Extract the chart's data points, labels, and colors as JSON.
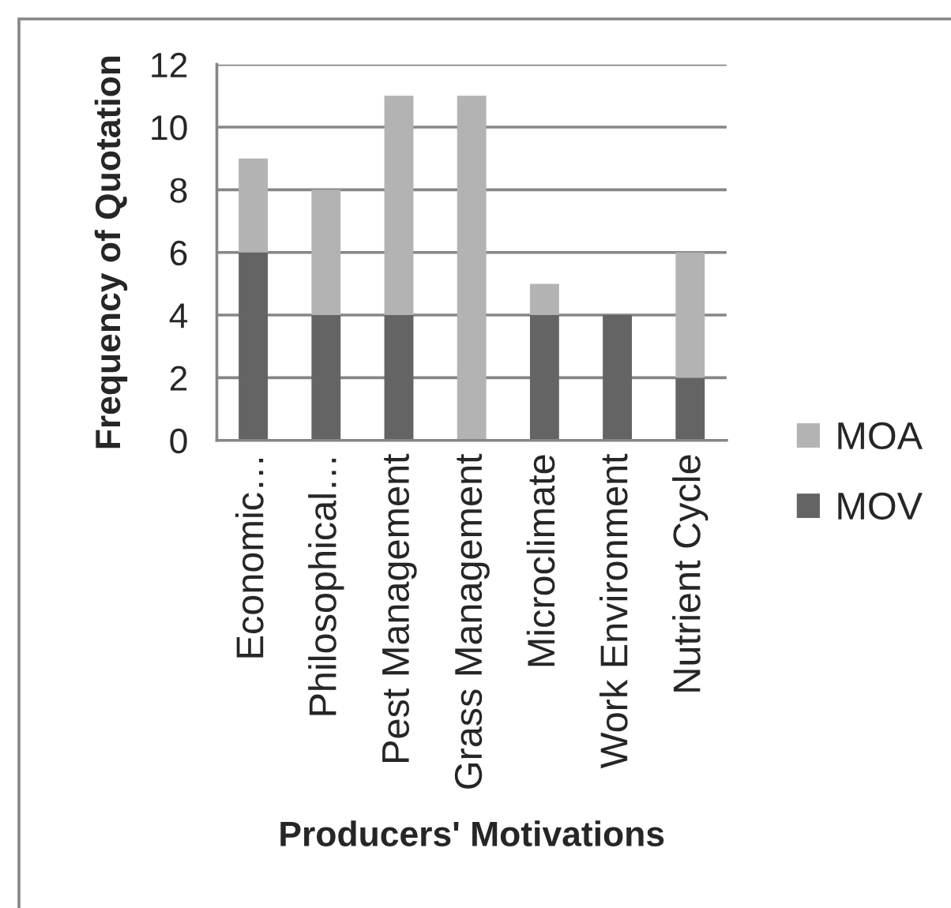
{
  "chart_data": {
    "type": "bar",
    "stacked": true,
    "xlabel": "Producers' Motivations",
    "ylabel": "Frequency of Quotation",
    "categories": [
      "Economic…",
      "Philosophical…",
      "Pest Management",
      "Grass Management",
      "Microclimate",
      "Work Environment",
      "Nutrient Cycle"
    ],
    "series": [
      {
        "name": "MOV",
        "color": "#646464",
        "values": [
          6,
          4,
          4,
          0,
          4,
          4,
          2
        ]
      },
      {
        "name": "MOA",
        "color": "#b3b3b3",
        "values": [
          3,
          4,
          7,
          11,
          1,
          0,
          4
        ]
      }
    ],
    "ylim": [
      0,
      12
    ],
    "yticks": [
      0,
      2,
      4,
      6,
      8,
      10,
      12
    ],
    "grid": "y",
    "legend": "right"
  }
}
